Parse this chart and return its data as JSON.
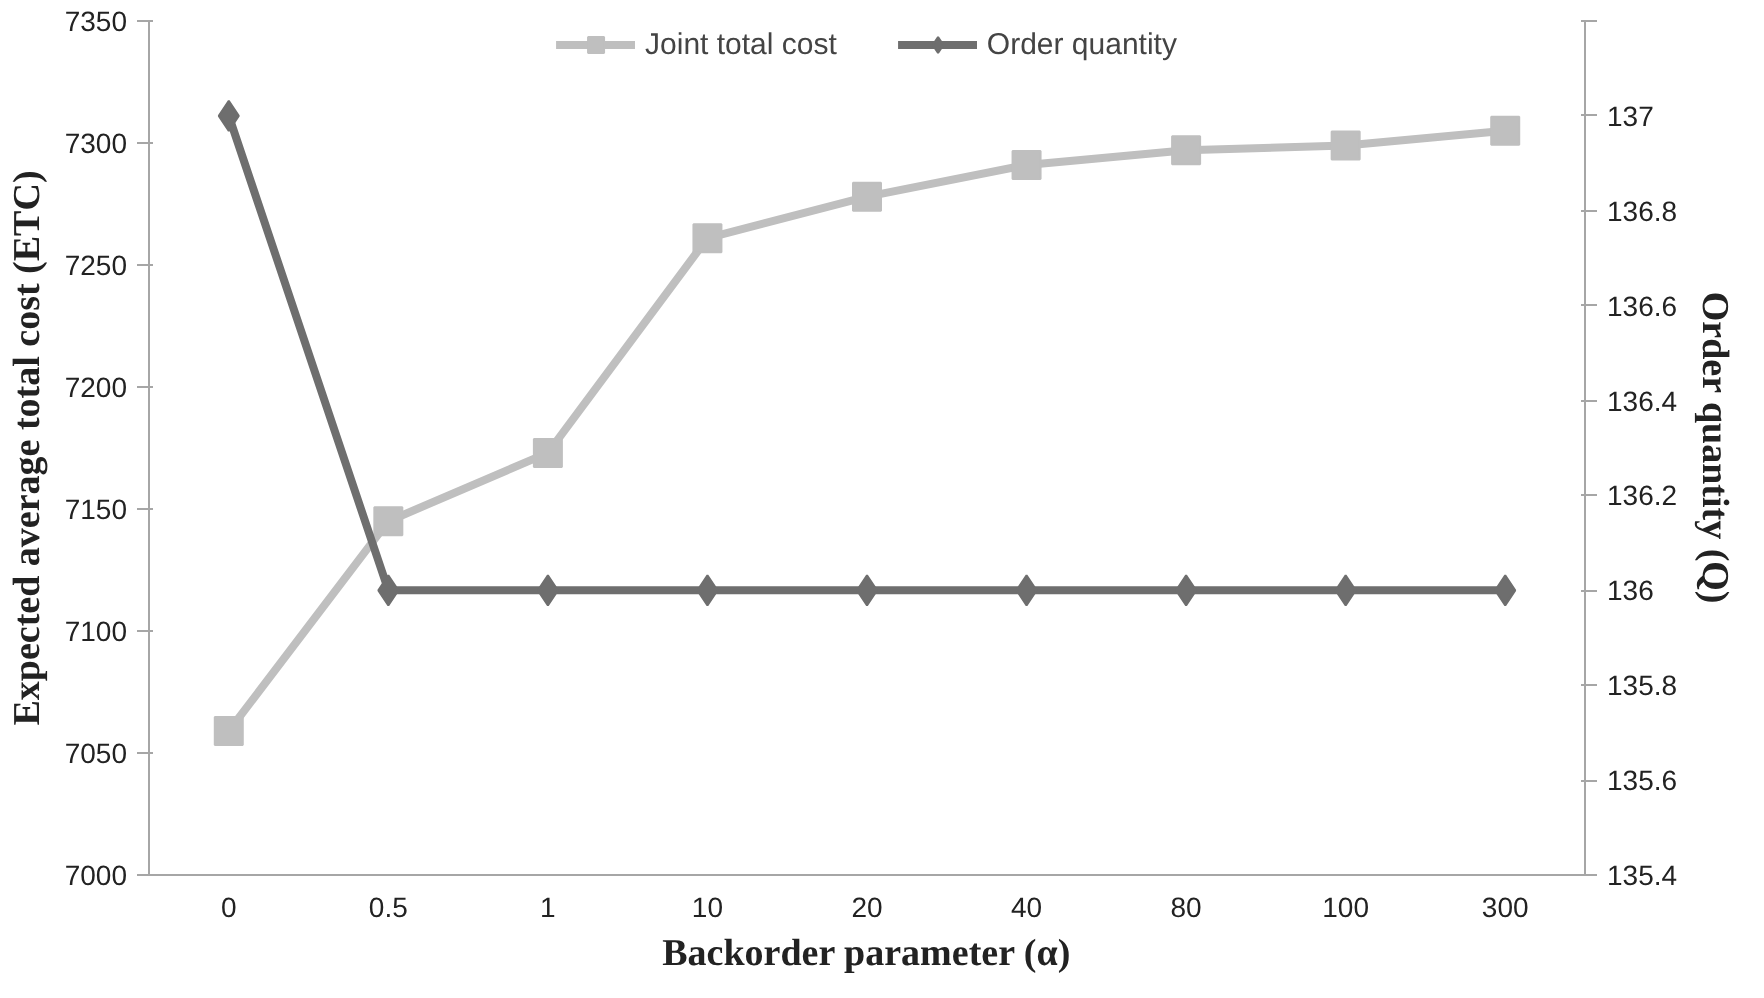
{
  "chart_data": {
    "type": "line",
    "categories": [
      "0",
      "0.5",
      "1",
      "10",
      "20",
      "40",
      "80",
      "100",
      "300"
    ],
    "series": [
      {
        "name": "Joint total cost",
        "color": "#bfbfbf",
        "marker": "square",
        "values": [
          7059,
          7145,
          7173,
          7261,
          7278,
          7291,
          7297,
          7299,
          7305
        ]
      },
      {
        "name": "Order quantity",
        "color": "#6e6e6e",
        "marker": "diamond",
        "axis": "y2",
        "values": [
          137,
          136,
          136,
          136,
          136,
          136,
          136,
          136,
          136
        ]
      }
    ],
    "xlabel": "Backorder parameter (α)",
    "ylabel": "Expected average total cost (ETC)",
    "y2label": "Order quantity (Q)",
    "ylim": [
      7000,
      7350
    ],
    "yticks": [
      7000,
      7050,
      7100,
      7150,
      7200,
      7250,
      7300,
      7350
    ],
    "y2lim": [
      135.4,
      137.2
    ],
    "y2ticks": [
      135.4,
      135.6,
      135.8,
      136,
      136.2,
      136.4,
      136.6,
      136.8,
      137,
      {
        "value": 137.2,
        "label": null
      }
    ],
    "grid": false,
    "legend": "top",
    "line_style": "solid"
  }
}
